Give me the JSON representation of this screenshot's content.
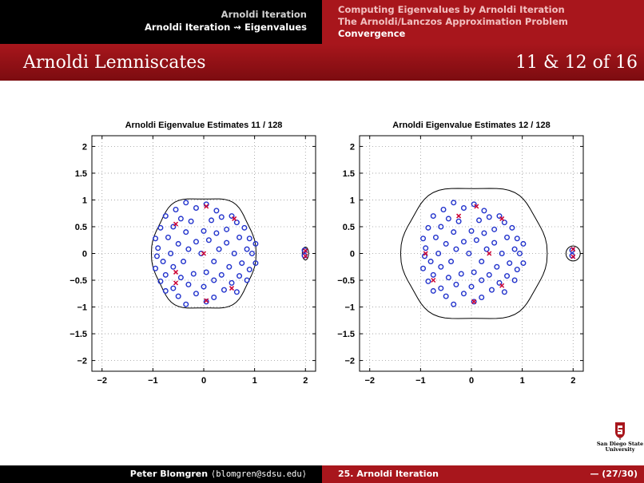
{
  "header": {
    "left": [
      "Arnoldi Iteration",
      "Arnoldi Iteration ⇝ Eigenvalues"
    ],
    "right": [
      "Computing Eigenvalues by Arnoldi Iteration",
      "The Arnoldi/Lanczos Approximation Problem",
      "Convergence"
    ],
    "right_active_index": 2
  },
  "slide": {
    "title": "Arnoldi Lemniscates",
    "page_label": "11 & 12 of 16"
  },
  "footer": {
    "author": "Peter Blomgren",
    "email": "⟨blomgren@sdsu.edu⟩",
    "section": "25. Arnoldi Iteration",
    "page": "— (27/30)"
  },
  "logo": {
    "text_line1": "San Diego State",
    "text_line2": "University"
  },
  "colors": {
    "header_black": "#000000",
    "accent_red": "#a8161c",
    "marker_blue": "#2233cc",
    "ritz_red": "#cc0033"
  },
  "chart_data": [
    {
      "type": "scatter",
      "title": "Arnoldi Eigenvalue Estimates 11 / 128",
      "xlim": [
        -2.2,
        2.2
      ],
      "ylim": [
        -2.2,
        2.2
      ],
      "xticks": [
        -2,
        -1,
        0,
        1,
        2
      ],
      "yticks": [
        -2,
        -1.5,
        -1,
        -0.5,
        0,
        0.5,
        1,
        1.5,
        2
      ],
      "xtick_labels": [
        "−2",
        "−1",
        "0",
        "1",
        "2"
      ],
      "ytick_labels": [
        "−2",
        "−1.5",
        "−1",
        "−0.5",
        "0",
        "0.5",
        "1",
        "1.5",
        "2"
      ],
      "grid": "dotted",
      "series": [
        {
          "marker": "circle",
          "color": "#2233cc",
          "points": [
            [
              -0.35,
              0.95
            ],
            [
              0.05,
              0.92
            ],
            [
              -0.15,
              0.85
            ],
            [
              0.25,
              0.8
            ],
            [
              -0.55,
              0.82
            ],
            [
              -0.75,
              0.7
            ],
            [
              0.55,
              0.7
            ],
            [
              0.35,
              0.68
            ],
            [
              -0.45,
              0.65
            ],
            [
              0.15,
              0.62
            ],
            [
              -0.25,
              0.6
            ],
            [
              0.65,
              0.58
            ],
            [
              0.8,
              0.48
            ],
            [
              -0.85,
              0.48
            ],
            [
              -0.6,
              0.5
            ],
            [
              0.45,
              0.45
            ],
            [
              0.0,
              0.42
            ],
            [
              -0.35,
              0.4
            ],
            [
              0.25,
              0.38
            ],
            [
              0.7,
              0.3
            ],
            [
              -0.7,
              0.3
            ],
            [
              -0.95,
              0.28
            ],
            [
              0.9,
              0.28
            ],
            [
              0.1,
              0.25
            ],
            [
              -0.15,
              0.22
            ],
            [
              0.45,
              0.2
            ],
            [
              -0.5,
              0.18
            ],
            [
              1.02,
              0.18
            ],
            [
              -0.9,
              0.1
            ],
            [
              0.85,
              0.08
            ],
            [
              -0.3,
              0.08
            ],
            [
              0.3,
              0.08
            ],
            [
              0.6,
              0.0
            ],
            [
              -0.65,
              0.0
            ],
            [
              -0.05,
              0.0
            ],
            [
              0.95,
              0.0
            ],
            [
              -0.92,
              -0.05
            ],
            [
              1.02,
              -0.18
            ],
            [
              -0.8,
              -0.15
            ],
            [
              0.75,
              -0.18
            ],
            [
              0.2,
              -0.15
            ],
            [
              -0.4,
              -0.15
            ],
            [
              0.5,
              -0.25
            ],
            [
              -0.6,
              -0.25
            ],
            [
              -0.95,
              -0.28
            ],
            [
              0.9,
              -0.3
            ],
            [
              0.05,
              -0.35
            ],
            [
              -0.2,
              -0.38
            ],
            [
              0.35,
              -0.4
            ],
            [
              0.7,
              -0.42
            ],
            [
              -0.75,
              -0.4
            ],
            [
              -0.45,
              -0.45
            ],
            [
              0.2,
              -0.5
            ],
            [
              -0.85,
              -0.52
            ],
            [
              0.85,
              -0.5
            ],
            [
              0.55,
              -0.55
            ],
            [
              -0.3,
              -0.58
            ],
            [
              0.0,
              -0.62
            ],
            [
              -0.6,
              -0.65
            ],
            [
              0.4,
              -0.68
            ],
            [
              -0.75,
              -0.7
            ],
            [
              0.65,
              -0.72
            ],
            [
              -0.15,
              -0.75
            ],
            [
              0.2,
              -0.82
            ],
            [
              -0.5,
              -0.8
            ],
            [
              0.05,
              -0.9
            ],
            [
              -0.35,
              -0.95
            ],
            [
              1.98,
              0.06
            ],
            [
              1.98,
              -0.04
            ]
          ]
        },
        {
          "marker": "cross",
          "color": "#cc0033",
          "points": [
            [
              -0.55,
              0.55
            ],
            [
              0.05,
              0.88
            ],
            [
              0.6,
              0.65
            ],
            [
              0.0,
              0.0
            ],
            [
              -0.55,
              -0.35
            ],
            [
              -0.55,
              -0.55
            ],
            [
              0.55,
              -0.65
            ],
            [
              0.05,
              -0.88
            ],
            [
              2.0,
              0.05
            ],
            [
              2.0,
              -0.05
            ]
          ]
        }
      ],
      "lemniscates": [
        {
          "kind": "smooth_closed_curve",
          "center": [
            0.0,
            0.0
          ],
          "radius_x": 1.0,
          "radius_y": 1.05
        },
        {
          "kind": "small_circle",
          "center": [
            2.0,
            0.0
          ],
          "radius": 0.06
        }
      ]
    },
    {
      "type": "scatter",
      "title": "Arnoldi Eigenvalue Estimates 12 / 128",
      "xlim": [
        -2.2,
        2.2
      ],
      "ylim": [
        -2.2,
        2.2
      ],
      "xticks": [
        -2,
        -1,
        0,
        1,
        2
      ],
      "yticks": [
        -2,
        -1.5,
        -1,
        -0.5,
        0,
        0.5,
        1,
        1.5,
        2
      ],
      "xtick_labels": [
        "−2",
        "−1",
        "0",
        "1",
        "2"
      ],
      "ytick_labels": [
        "−2",
        "−1.5",
        "−1",
        "−0.5",
        "0",
        "0.5",
        "1",
        "1.5",
        "2"
      ],
      "grid": "dotted",
      "series": [
        {
          "marker": "circle",
          "color": "#2233cc",
          "points": [
            [
              -0.35,
              0.95
            ],
            [
              0.05,
              0.92
            ],
            [
              -0.15,
              0.85
            ],
            [
              0.25,
              0.8
            ],
            [
              -0.55,
              0.82
            ],
            [
              -0.75,
              0.7
            ],
            [
              0.55,
              0.7
            ],
            [
              0.35,
              0.68
            ],
            [
              -0.45,
              0.65
            ],
            [
              0.15,
              0.62
            ],
            [
              -0.25,
              0.6
            ],
            [
              0.65,
              0.58
            ],
            [
              0.8,
              0.48
            ],
            [
              -0.85,
              0.48
            ],
            [
              -0.6,
              0.5
            ],
            [
              0.45,
              0.45
            ],
            [
              0.0,
              0.42
            ],
            [
              -0.35,
              0.4
            ],
            [
              0.25,
              0.38
            ],
            [
              0.7,
              0.3
            ],
            [
              -0.7,
              0.3
            ],
            [
              -0.95,
              0.28
            ],
            [
              0.9,
              0.28
            ],
            [
              0.1,
              0.25
            ],
            [
              -0.15,
              0.22
            ],
            [
              0.45,
              0.2
            ],
            [
              -0.5,
              0.18
            ],
            [
              1.02,
              0.18
            ],
            [
              -0.9,
              0.1
            ],
            [
              0.85,
              0.08
            ],
            [
              -0.3,
              0.08
            ],
            [
              0.3,
              0.08
            ],
            [
              0.6,
              0.0
            ],
            [
              -0.65,
              0.0
            ],
            [
              -0.05,
              0.0
            ],
            [
              0.95,
              0.0
            ],
            [
              -0.92,
              -0.05
            ],
            [
              1.02,
              -0.18
            ],
            [
              -0.8,
              -0.15
            ],
            [
              0.75,
              -0.18
            ],
            [
              0.2,
              -0.15
            ],
            [
              -0.4,
              -0.15
            ],
            [
              0.5,
              -0.25
            ],
            [
              -0.6,
              -0.25
            ],
            [
              -0.95,
              -0.28
            ],
            [
              0.9,
              -0.3
            ],
            [
              0.05,
              -0.35
            ],
            [
              -0.2,
              -0.38
            ],
            [
              0.35,
              -0.4
            ],
            [
              0.7,
              -0.42
            ],
            [
              -0.75,
              -0.4
            ],
            [
              -0.45,
              -0.45
            ],
            [
              0.2,
              -0.5
            ],
            [
              -0.85,
              -0.52
            ],
            [
              0.85,
              -0.5
            ],
            [
              0.55,
              -0.55
            ],
            [
              -0.3,
              -0.58
            ],
            [
              0.0,
              -0.62
            ],
            [
              -0.6,
              -0.65
            ],
            [
              0.4,
              -0.68
            ],
            [
              -0.75,
              -0.7
            ],
            [
              0.65,
              -0.72
            ],
            [
              -0.15,
              -0.75
            ],
            [
              0.2,
              -0.82
            ],
            [
              -0.5,
              -0.8
            ],
            [
              0.05,
              -0.9
            ],
            [
              -0.35,
              -0.95
            ],
            [
              1.98,
              0.06
            ],
            [
              1.98,
              -0.04
            ]
          ]
        },
        {
          "marker": "cross",
          "color": "#cc0033",
          "points": [
            [
              -0.25,
              0.7
            ],
            [
              0.1,
              0.88
            ],
            [
              0.6,
              0.65
            ],
            [
              0.35,
              0.0
            ],
            [
              -0.9,
              0.0
            ],
            [
              -0.75,
              -0.5
            ],
            [
              0.6,
              -0.6
            ],
            [
              0.05,
              -0.9
            ],
            [
              2.0,
              0.08
            ],
            [
              2.0,
              -0.06
            ]
          ]
        }
      ],
      "lemniscates": [
        {
          "kind": "smooth_closed_curve",
          "center": [
            0.05,
            0.0
          ],
          "radius_x": 1.4,
          "radius_y": 1.25
        },
        {
          "kind": "small_circle",
          "center": [
            2.0,
            0.0
          ],
          "radius": 0.14
        }
      ]
    }
  ]
}
